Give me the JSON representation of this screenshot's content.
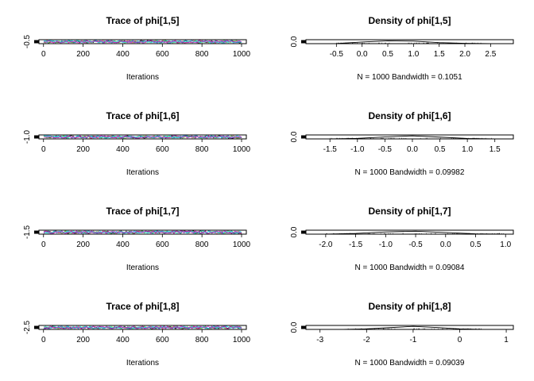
{
  "chart_data": [
    {
      "type": "line",
      "kind": "trace",
      "title": "Trace of phi[1,5]",
      "xlabel": "Iterations",
      "ylabel": "",
      "xlim": [
        1,
        1000
      ],
      "x_ticks": [
        0,
        200,
        400,
        600,
        800,
        1000
      ],
      "y_ticks": [
        "-0.5"
      ],
      "y_tick_value": -0.5,
      "y_center": -0.45,
      "y_spread": 0.04,
      "series_colors": [
        "#000000",
        "#df536b",
        "#61d04f",
        "#2297e6",
        "#28e2e5",
        "#cd0bbc"
      ]
    },
    {
      "type": "line",
      "kind": "density",
      "title": "Density of phi[1,5]",
      "xlabel": "N = 1000   Bandwidth = 0.1051",
      "ylabel": "",
      "xlim": [
        -1.0,
        2.85
      ],
      "x_ticks": [
        "-0.5",
        "0.0",
        "0.5",
        "1.0",
        "1.5",
        "2.0",
        "2.5"
      ],
      "y_ticks": [
        "0.0"
      ],
      "x": [
        -1.0,
        -0.5,
        0.0,
        0.5,
        1.0,
        1.5,
        2.0,
        2.5,
        2.85
      ],
      "y": [
        0.0,
        0.02,
        0.18,
        0.32,
        0.28,
        0.12,
        0.04,
        0.01,
        0.0
      ],
      "ylim": [
        0,
        0.4
      ]
    },
    {
      "type": "line",
      "kind": "trace",
      "title": "Trace of phi[1,6]",
      "xlabel": "Iterations",
      "ylabel": "",
      "xlim": [
        1,
        1000
      ],
      "x_ticks": [
        0,
        200,
        400,
        600,
        800,
        1000
      ],
      "y_ticks": [
        "-1.0"
      ],
      "y_tick_value": -1.0,
      "y_center": -0.95,
      "y_spread": 0.04,
      "series_colors": [
        "#000000",
        "#df536b",
        "#61d04f",
        "#2297e6",
        "#28e2e5",
        "#cd0bbc"
      ]
    },
    {
      "type": "line",
      "kind": "density",
      "title": "Density of phi[1,6]",
      "xlabel": "N = 1000   Bandwidth = 0.09982",
      "ylabel": "",
      "xlim": [
        -1.85,
        1.75
      ],
      "x_ticks": [
        "-1.5",
        "-1.0",
        "-0.5",
        "0.0",
        "0.5",
        "1.0",
        "1.5"
      ],
      "y_ticks": [
        "0.0"
      ],
      "x": [
        -1.85,
        -1.5,
        -1.0,
        -0.5,
        0.0,
        0.5,
        1.0,
        1.5,
        1.75
      ],
      "y": [
        0.0,
        0.01,
        0.06,
        0.22,
        0.34,
        0.2,
        0.05,
        0.01,
        0.0
      ],
      "ylim": [
        0,
        0.4
      ]
    },
    {
      "type": "line",
      "kind": "trace",
      "title": "Trace of phi[1,7]",
      "xlabel": "Iterations",
      "ylabel": "",
      "xlim": [
        1,
        1000
      ],
      "x_ticks": [
        0,
        200,
        400,
        600,
        800,
        1000
      ],
      "y_ticks": [
        "-1.5"
      ],
      "y_tick_value": -1.5,
      "y_center": -1.45,
      "y_spread": 0.04,
      "series_colors": [
        "#000000",
        "#df536b",
        "#61d04f",
        "#2297e6",
        "#28e2e5",
        "#cd0bbc"
      ]
    },
    {
      "type": "line",
      "kind": "density",
      "title": "Density of phi[1,7]",
      "xlabel": "N = 1000   Bandwidth = 0.09084",
      "ylabel": "",
      "xlim": [
        -2.25,
        1.05
      ],
      "x_ticks": [
        "-2.0",
        "-1.5",
        "-1.0",
        "-0.5",
        "0.0",
        "0.5",
        "1.0"
      ],
      "y_ticks": [
        "0.0"
      ],
      "x": [
        -2.25,
        -2.0,
        -1.5,
        -1.0,
        -0.5,
        0.0,
        0.5,
        1.0,
        1.05
      ],
      "y": [
        0.0,
        0.01,
        0.08,
        0.25,
        0.33,
        0.18,
        0.04,
        0.0,
        0.0
      ],
      "ylim": [
        0,
        0.4
      ]
    },
    {
      "type": "line",
      "kind": "trace",
      "title": "Trace of phi[1,8]",
      "xlabel": "Iterations",
      "ylabel": "",
      "xlim": [
        1,
        1000
      ],
      "x_ticks": [
        0,
        200,
        400,
        600,
        800,
        1000
      ],
      "y_ticks": [
        "-2.5"
      ],
      "y_tick_value": -2.5,
      "y_center": -2.45,
      "y_spread": 0.04,
      "series_colors": [
        "#000000",
        "#df536b",
        "#61d04f",
        "#2297e6",
        "#28e2e5",
        "#cd0bbc"
      ]
    },
    {
      "type": "line",
      "kind": "density",
      "title": "Density of phi[1,8]",
      "xlabel": "N = 1000   Bandwidth = 0.09039",
      "ylabel": "",
      "xlim": [
        -3.2,
        1.05
      ],
      "x_ticks": [
        "-3",
        "-2",
        "-1",
        "0",
        "1"
      ],
      "y_ticks": [
        "0.0"
      ],
      "x": [
        -3.2,
        -2.5,
        -2.0,
        -1.5,
        -1.0,
        -0.5,
        0.0,
        0.5,
        1.05
      ],
      "y": [
        0.0,
        0.01,
        0.06,
        0.2,
        0.34,
        0.22,
        0.06,
        0.01,
        0.0
      ],
      "ylim": [
        0,
        0.4
      ]
    }
  ]
}
